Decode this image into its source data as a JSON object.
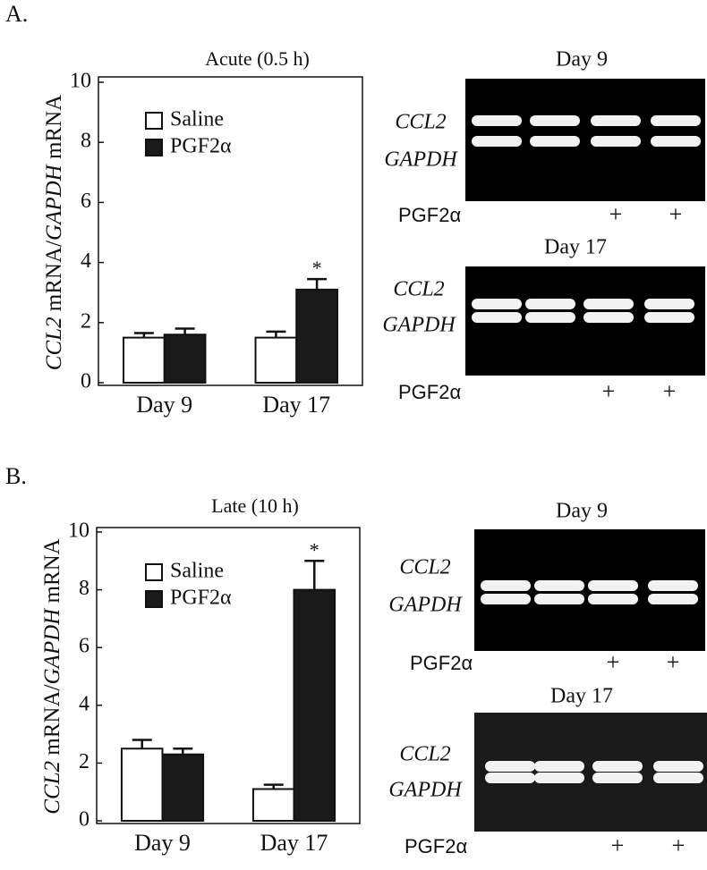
{
  "panels": [
    "A.",
    "B."
  ],
  "chart_data": [
    {
      "type": "bar",
      "title": "Acute (0.5 h)",
      "ylabel": [
        "CCL2",
        " mRNA/",
        "GAPDH",
        " mRNA"
      ],
      "categories": [
        "Day 9",
        "Day 17"
      ],
      "series": [
        {
          "name": "Saline",
          "color": "#ffffff",
          "values": [
            1.5,
            1.5
          ],
          "errors": [
            0.15,
            0.2
          ],
          "annotations": [
            null,
            null
          ]
        },
        {
          "name": "PGF2α",
          "color": "#1a1a1a",
          "values": [
            1.6,
            3.1
          ],
          "errors": [
            0.2,
            0.35
          ],
          "annotations": [
            null,
            "*"
          ]
        }
      ],
      "ylim": [
        0,
        10
      ],
      "yticks": [
        0,
        2,
        4,
        6,
        8,
        10
      ],
      "legend": "upper-left"
    },
    {
      "type": "bar",
      "title": "Late (10 h)",
      "ylabel": [
        "CCL2",
        " mRNA/",
        "GAPDH",
        " mRNA"
      ],
      "categories": [
        "Day 9",
        "Day 17"
      ],
      "series": [
        {
          "name": "Saline",
          "color": "#ffffff",
          "values": [
            2.5,
            1.1
          ],
          "errors": [
            0.3,
            0.15
          ],
          "annotations": [
            null,
            null
          ]
        },
        {
          "name": "PGF2α",
          "color": "#1a1a1a",
          "values": [
            2.3,
            8.0
          ],
          "errors": [
            0.2,
            1.0
          ],
          "annotations": [
            null,
            "*"
          ]
        }
      ],
      "ylim": [
        0,
        10
      ],
      "yticks": [
        0,
        2,
        4,
        6,
        8,
        10
      ],
      "legend": "upper-left"
    }
  ],
  "gels": [
    {
      "title": "Day 9",
      "rows": [
        "CCL2",
        "GAPDH"
      ],
      "treatment": "PGF2α",
      "lanes": [
        null,
        null,
        "+",
        "+"
      ]
    },
    {
      "title": "Day 17",
      "rows": [
        "CCL2",
        "GAPDH"
      ],
      "treatment": "PGF2α",
      "lanes": [
        null,
        null,
        "+",
        "+"
      ]
    },
    {
      "title": "Day 9",
      "rows": [
        "CCL2",
        "GAPDH"
      ],
      "treatment": "PGF2α",
      "lanes": [
        null,
        null,
        "+",
        "+"
      ]
    },
    {
      "title": "Day 17",
      "rows": [
        "CCL2",
        "GAPDH"
      ],
      "treatment": "PGF2α",
      "lanes": [
        null,
        null,
        "+",
        "+"
      ]
    }
  ]
}
